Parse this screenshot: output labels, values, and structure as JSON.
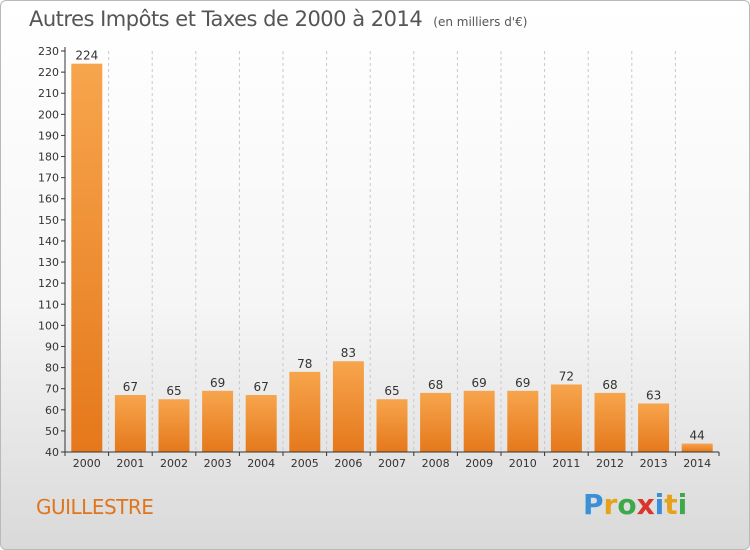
{
  "title": "Autres Impôts et Taxes de 2000 à 2014",
  "unit_note": "(en milliers d'€)",
  "commune": "GUILLESTRE",
  "brand": {
    "letters": [
      "P",
      "r",
      "o",
      "x",
      "i",
      "t",
      "i"
    ],
    "colors": [
      "#3a8fd6",
      "#e7a21b",
      "#3fa84a",
      "#d9352b",
      "#3a8fd6",
      "#e7a21b",
      "#3fa84a"
    ]
  },
  "colors": {
    "bar_light": "#f7a54d",
    "bar_dark": "#e5781b",
    "axis": "#333333",
    "grid": "#c8c8c8",
    "text": "#333333",
    "commune": "#e0751c"
  },
  "chart_data": {
    "type": "bar",
    "categories": [
      "2000",
      "2001",
      "2002",
      "2003",
      "2004",
      "2005",
      "2006",
      "2007",
      "2008",
      "2009",
      "2010",
      "2011",
      "2012",
      "2013",
      "2014"
    ],
    "values": [
      224,
      67,
      65,
      69,
      67,
      78,
      83,
      65,
      68,
      69,
      69,
      72,
      68,
      63,
      44
    ],
    "data_labels": [
      "224",
      "67",
      "65",
      "69",
      "67",
      "78",
      "83",
      "65",
      "68",
      "69",
      "69",
      "72",
      "68",
      "63",
      "44"
    ],
    "ylim": [
      40,
      230
    ],
    "yticks": [
      40,
      50,
      60,
      70,
      80,
      90,
      100,
      110,
      120,
      130,
      140,
      150,
      160,
      170,
      180,
      190,
      200,
      210,
      220,
      230
    ],
    "ytick_labels": [
      "40",
      "50",
      "60",
      "70",
      "80",
      "90",
      "100",
      "110",
      "120",
      "130",
      "140",
      "150",
      "160",
      "170",
      "180",
      "190",
      "200",
      "210",
      "220",
      "230"
    ],
    "grid": "vertical dashed lines between categories",
    "legend": "none"
  }
}
